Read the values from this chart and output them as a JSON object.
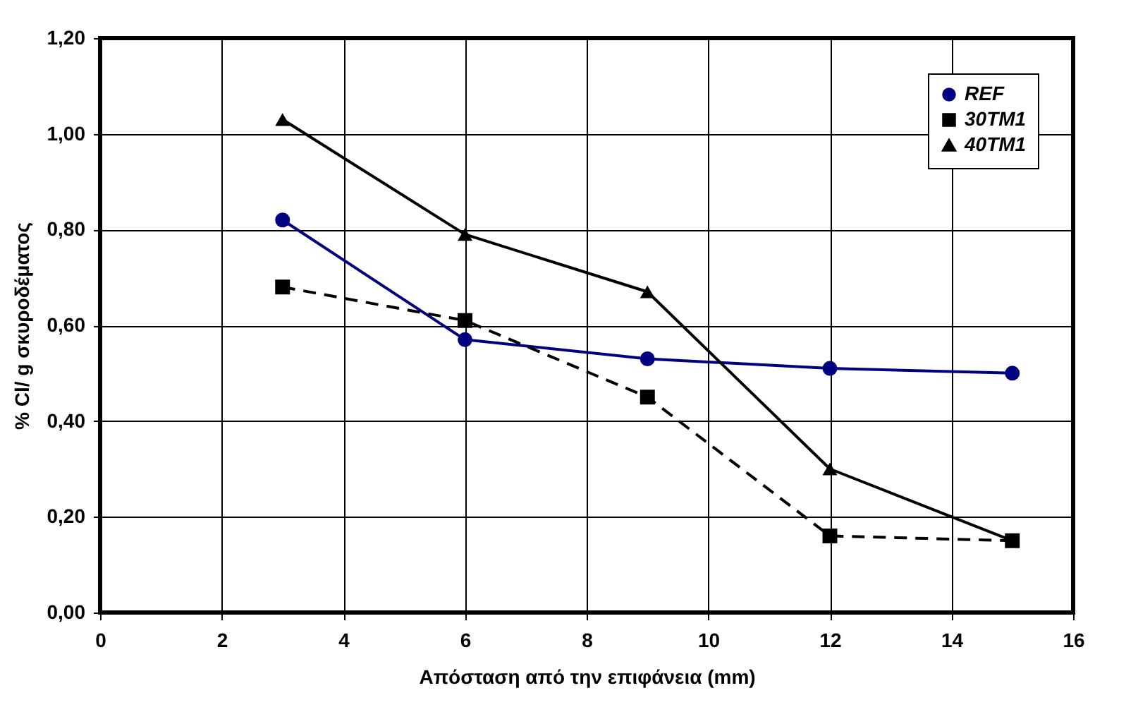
{
  "chart_data": {
    "type": "line",
    "xlabel": "Απόσταση από την επιφάνεια (mm)",
    "ylabel": "% Cl/ g σκυροδέματος",
    "x": [
      3,
      6,
      9,
      12,
      15
    ],
    "series": [
      {
        "name": "REF",
        "color": "#000080",
        "values": [
          0.82,
          0.57,
          0.53,
          0.51,
          0.5
        ],
        "marker": "circle",
        "line_style": "solid"
      },
      {
        "name": "30TM1",
        "color": "#000000",
        "values": [
          0.68,
          0.61,
          0.45,
          0.16,
          0.15
        ],
        "marker": "square",
        "line_style": "dashed"
      },
      {
        "name": "40TM1",
        "color": "#000000",
        "values": [
          1.03,
          0.79,
          0.67,
          0.3,
          0.15
        ],
        "marker": "triangle",
        "line_style": "solid"
      }
    ],
    "xlim": [
      0,
      16
    ],
    "xticks": [
      0,
      2,
      4,
      6,
      8,
      10,
      12,
      14,
      16
    ],
    "ylim": [
      0,
      1.2
    ],
    "yticks": [
      {
        "value": 0,
        "label": "0,00"
      },
      {
        "value": 0.2,
        "label": "0,20"
      },
      {
        "value": 0.4,
        "label": "0,40"
      },
      {
        "value": 0.6,
        "label": "0,60"
      },
      {
        "value": 0.8,
        "label": "0,80"
      },
      {
        "value": 1,
        "label": "1,00"
      },
      {
        "value": 1.2,
        "label": "1,20"
      }
    ],
    "grid": true,
    "legend": "top right"
  }
}
